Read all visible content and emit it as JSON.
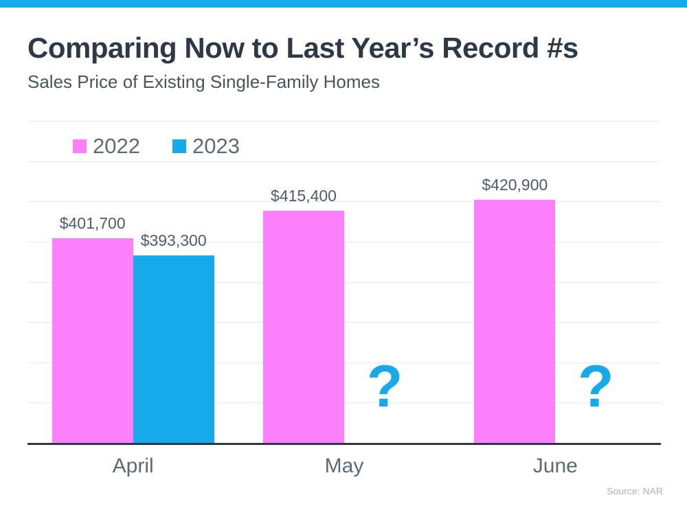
{
  "theme": {
    "accent_blue": "#16aaeb",
    "accent_pink": "#fc80fc",
    "axis_color": "#2f3842",
    "gridline_color": "#e7e8ea"
  },
  "header": {
    "title": "Comparing Now to Last Year’s Record #s",
    "subtitle": "Sales Price of Existing Single-Family Homes"
  },
  "footer": {
    "source": "Source: NAR"
  },
  "chart_data": {
    "type": "bar",
    "title": "Comparing Now to Last Year’s Record #s",
    "subtitle": "Sales Price of Existing Single-Family Homes",
    "categories": [
      "April",
      "May",
      "June"
    ],
    "series": [
      {
        "name": "2022",
        "color": "#fc80fc",
        "values": [
          401700,
          415400,
          420900
        ],
        "labels": [
          "$401,700",
          "$415,400",
          "$420,900"
        ]
      },
      {
        "name": "2023",
        "color": "#16aaeb",
        "values": [
          393300,
          null,
          null
        ],
        "labels": [
          "$393,300",
          null,
          null
        ]
      }
    ],
    "missing_marker": "?",
    "missing_marker_color": "#16aaeb",
    "ylim": [
      300000,
      460000
    ],
    "gridline_step": 20000,
    "y_axis_labels_shown": false,
    "grid": true,
    "legend_position": "top-left",
    "xlabel": "",
    "ylabel": ""
  }
}
